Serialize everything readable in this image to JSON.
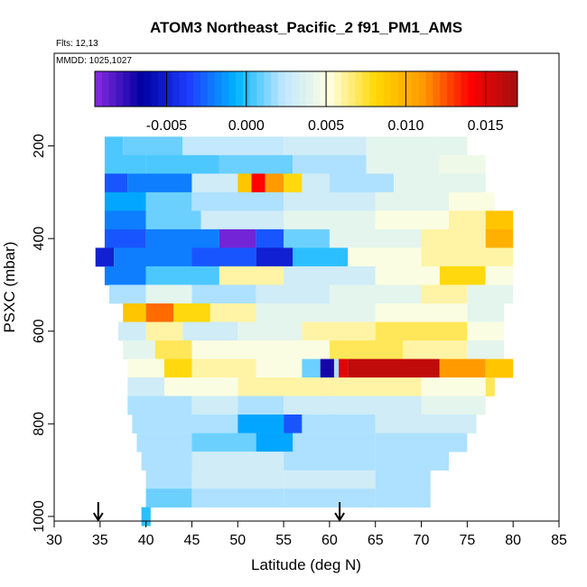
{
  "chart_data": {
    "type": "heatmap",
    "title": "ATOM3 Northeast_Pacific_2 f91_PM1_AMS",
    "flights_label": "Flts: 12,13",
    "date_label": "MMDD: 1025,1027",
    "xlabel": "Latitude (deg N)",
    "ylabel": "PSXC (mbar)",
    "xlim": [
      30,
      85
    ],
    "ylim": [
      1010,
      0
    ],
    "x_ticks": [
      30,
      35,
      40,
      45,
      50,
      55,
      60,
      65,
      70,
      75,
      80,
      85
    ],
    "y_ticks": [
      200,
      400,
      600,
      800,
      1000
    ],
    "colorbar": {
      "range": [
        -0.0095,
        0.017
      ],
      "ticks": [
        -0.005,
        0.0,
        0.005,
        0.01,
        0.015
      ],
      "tick_labels": [
        "-0.005",
        "0.000",
        "0.005",
        "0.010",
        "0.015"
      ],
      "colors": [
        "#8a2be2",
        "#0000a0",
        "#1e3cff",
        "#00b4ff",
        "#bfe6ff",
        "#ffffe0",
        "#ffd700",
        "#ff9900",
        "#ff0000",
        "#a01010"
      ]
    },
    "arrows_x": [
      34.8,
      61.1
    ],
    "rows": [
      {
        "p": 200,
        "segments": [
          [
            35.5,
            37.5,
            0.0005
          ],
          [
            37.5,
            44,
            0.001
          ],
          [
            44,
            55,
            0.0025
          ],
          [
            55,
            64,
            0.003
          ],
          [
            64,
            72,
            0.004
          ],
          [
            72,
            75,
            0.004
          ]
        ]
      },
      {
        "p": 240,
        "segments": [
          [
            35.5,
            40,
            0.0005
          ],
          [
            40,
            48,
            0.0005
          ],
          [
            48,
            56,
            0.001
          ],
          [
            56,
            64,
            0.002
          ],
          [
            64,
            72,
            0.004
          ],
          [
            72,
            77,
            0.0045
          ]
        ]
      },
      {
        "p": 280,
        "segments": [
          [
            35.5,
            38,
            -0.003
          ],
          [
            38,
            45,
            -0.002
          ],
          [
            45,
            50,
            0.003
          ],
          [
            50,
            51.5,
            0.009
          ],
          [
            51.5,
            53,
            0.014
          ],
          [
            53,
            55,
            0.011
          ],
          [
            55,
            57,
            0.008
          ],
          [
            57,
            60,
            0.003
          ],
          [
            60,
            67,
            0.002
          ],
          [
            67,
            72,
            0.004
          ],
          [
            72,
            77,
            0.004
          ]
        ]
      },
      {
        "p": 320,
        "segments": [
          [
            35.5,
            40,
            -0.001
          ],
          [
            40,
            45,
            0.001
          ],
          [
            45,
            55,
            0.002
          ],
          [
            55,
            65,
            0.003
          ],
          [
            65,
            73,
            0.004
          ],
          [
            73,
            78,
            0.005
          ]
        ]
      },
      {
        "p": 360,
        "segments": [
          [
            35.5,
            40,
            -0.002
          ],
          [
            40,
            46,
            0.001
          ],
          [
            46,
            55,
            0.003
          ],
          [
            55,
            65,
            0.004
          ],
          [
            65,
            73,
            0.005
          ],
          [
            73,
            77,
            0.006
          ],
          [
            77,
            80,
            0.009
          ]
        ]
      },
      {
        "p": 400,
        "segments": [
          [
            35.5,
            40,
            -0.003
          ],
          [
            40,
            48,
            -0.002
          ],
          [
            48,
            52,
            -0.009
          ],
          [
            52,
            55,
            -0.003
          ],
          [
            55,
            60,
            0.001
          ],
          [
            60,
            70,
            0.004
          ],
          [
            70,
            77,
            0.006
          ],
          [
            77,
            80,
            0.01
          ]
        ]
      },
      {
        "p": 440,
        "segments": [
          [
            34.5,
            36.5,
            -0.005
          ],
          [
            36.5,
            45,
            -0.002
          ],
          [
            45,
            52,
            -0.003
          ],
          [
            52,
            56,
            -0.005
          ],
          [
            56,
            62,
            0.0
          ],
          [
            62,
            70,
            0.005
          ],
          [
            70,
            80,
            0.006
          ]
        ]
      },
      {
        "p": 480,
        "segments": [
          [
            35.5,
            40,
            -0.002
          ],
          [
            40,
            48,
            0.0005
          ],
          [
            48,
            55,
            0.006
          ],
          [
            55,
            65,
            0.003
          ],
          [
            65,
            72,
            0.005
          ],
          [
            72,
            77,
            0.008
          ],
          [
            77,
            80,
            0.005
          ]
        ]
      },
      {
        "p": 520,
        "segments": [
          [
            36,
            40,
            0.002
          ],
          [
            40,
            45,
            0.004
          ],
          [
            45,
            52,
            0.002
          ],
          [
            52,
            60,
            0.003
          ],
          [
            60,
            70,
            0.004
          ],
          [
            70,
            75,
            0.006
          ],
          [
            75,
            80,
            0.004
          ]
        ]
      },
      {
        "p": 560,
        "segments": [
          [
            37.5,
            40,
            0.009
          ],
          [
            40,
            43,
            0.012
          ],
          [
            43,
            47,
            0.008
          ],
          [
            47,
            52,
            0.006
          ],
          [
            52,
            57,
            0.004
          ],
          [
            57,
            65,
            0.004
          ],
          [
            65,
            75,
            0.005
          ],
          [
            75,
            79,
            0.004
          ]
        ]
      },
      {
        "p": 600,
        "segments": [
          [
            37,
            40,
            0.003
          ],
          [
            40,
            44,
            0.006
          ],
          [
            44,
            50,
            0.003
          ],
          [
            50,
            57,
            0.004
          ],
          [
            57,
            65,
            0.006
          ],
          [
            65,
            75,
            0.007
          ],
          [
            75,
            79,
            0.005
          ]
        ]
      },
      {
        "p": 640,
        "segments": [
          [
            37.5,
            41,
            0.004
          ],
          [
            41,
            45,
            0.007
          ],
          [
            45,
            55,
            0.005
          ],
          [
            55,
            60,
            0.005
          ],
          [
            60,
            68,
            0.007
          ],
          [
            68,
            75,
            0.006
          ],
          [
            75,
            79,
            0.004
          ]
        ]
      },
      {
        "p": 680,
        "segments": [
          [
            38,
            42,
            0.005
          ],
          [
            42,
            45,
            0.008
          ],
          [
            45,
            52,
            0.006
          ],
          [
            52,
            57,
            0.005
          ],
          [
            57,
            59,
            0.001
          ],
          [
            59,
            60.5,
            -0.007
          ],
          [
            60.5,
            61,
            0.002
          ],
          [
            61,
            62,
            0.015
          ],
          [
            62,
            72,
            0.016
          ],
          [
            72,
            77,
            0.011
          ],
          [
            77,
            80,
            0.009
          ]
        ]
      },
      {
        "p": 720,
        "segments": [
          [
            38,
            42,
            0.003
          ],
          [
            42,
            50,
            0.005
          ],
          [
            50,
            60,
            0.006
          ],
          [
            60,
            70,
            0.006
          ],
          [
            70,
            77,
            0.005
          ],
          [
            77,
            78,
            0.007
          ]
        ]
      },
      {
        "p": 760,
        "segments": [
          [
            38,
            45,
            0.002
          ],
          [
            45,
            50,
            0.003
          ],
          [
            50,
            55,
            0.002
          ],
          [
            55,
            60,
            0.003
          ],
          [
            60,
            70,
            0.003
          ],
          [
            70,
            77,
            0.004
          ]
        ]
      },
      {
        "p": 800,
        "segments": [
          [
            38.5,
            45,
            0.002
          ],
          [
            45,
            50,
            0.002
          ],
          [
            50,
            55,
            -0.001
          ],
          [
            55,
            57,
            -0.003
          ],
          [
            57,
            65,
            0.002
          ],
          [
            65,
            76,
            0.003
          ]
        ]
      },
      {
        "p": 840,
        "segments": [
          [
            39,
            45,
            0.002
          ],
          [
            45,
            52,
            0.001
          ],
          [
            52,
            56,
            -0.001
          ],
          [
            56,
            65,
            0.002
          ],
          [
            65,
            75,
            0.002
          ]
        ]
      },
      {
        "p": 880,
        "segments": [
          [
            39.5,
            45,
            0.002
          ],
          [
            45,
            55,
            0.003
          ],
          [
            55,
            65,
            0.002
          ],
          [
            65,
            73,
            0.002
          ]
        ]
      },
      {
        "p": 920,
        "segments": [
          [
            40,
            45,
            0.002
          ],
          [
            45,
            55,
            0.003
          ],
          [
            55,
            65,
            0.003
          ],
          [
            65,
            71,
            0.002
          ]
        ]
      },
      {
        "p": 960,
        "segments": [
          [
            40,
            45,
            0.001
          ],
          [
            45,
            55,
            0.002
          ],
          [
            55,
            65,
            0.002
          ],
          [
            65,
            71,
            0.002
          ]
        ]
      },
      {
        "p": 1000,
        "segments": [
          [
            39.5,
            40.5,
            0.0
          ]
        ]
      }
    ]
  }
}
